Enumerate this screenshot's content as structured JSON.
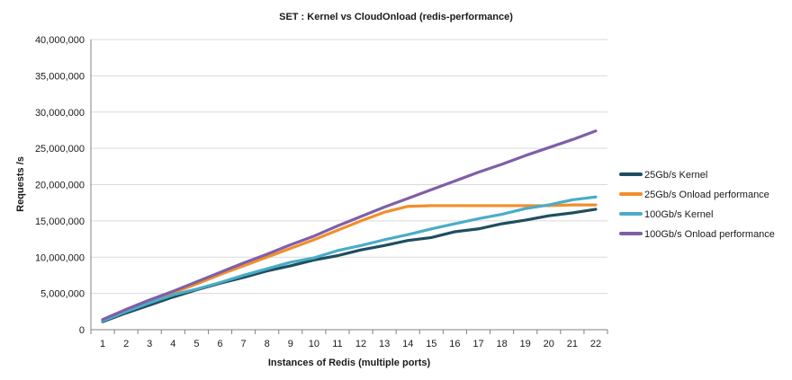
{
  "chart_data": {
    "type": "line",
    "title": "SET : Kernel vs CloudOnload (redis-performance)",
    "xlabel": "Instances of Redis (multiple ports)",
    "ylabel": "Requests /s",
    "x": [
      1,
      2,
      3,
      4,
      5,
      6,
      7,
      8,
      9,
      10,
      11,
      12,
      13,
      14,
      15,
      16,
      17,
      18,
      19,
      20,
      21,
      22
    ],
    "ylim": [
      0,
      40000000
    ],
    "y_ticks": [
      0,
      5000000,
      10000000,
      15000000,
      20000000,
      25000000,
      30000000,
      35000000,
      40000000
    ],
    "y_tick_labels": [
      "0",
      "5,000,000",
      "10,000,000",
      "15,000,000",
      "20,000,000",
      "25,000,000",
      "30,000,000",
      "35,000,000",
      "40,000,000"
    ],
    "grid": "horizontal",
    "legend_position": "right",
    "series": [
      {
        "name": "25Gb/s Kernel",
        "color": "#1f4e5f",
        "values": [
          1100000,
          2300000,
          3400000,
          4500000,
          5500000,
          6400000,
          7200000,
          8100000,
          8800000,
          9600000,
          10200000,
          11000000,
          11600000,
          12300000,
          12700000,
          13500000,
          13900000,
          14600000,
          15100000,
          15700000,
          16100000,
          16600000
        ]
      },
      {
        "name": "25Gb/s Onload performance",
        "color": "#f28e2b",
        "values": [
          1300000,
          2600000,
          3900000,
          5100000,
          6300000,
          7600000,
          8800000,
          10000000,
          11200000,
          12400000,
          13700000,
          15000000,
          16200000,
          17000000,
          17100000,
          17100000,
          17100000,
          17100000,
          17100000,
          17100000,
          17200000,
          17200000
        ]
      },
      {
        "name": "100Gb/s Kernel",
        "color": "#4bacc6",
        "values": [
          1200000,
          2500000,
          3700000,
          4800000,
          5600000,
          6500000,
          7500000,
          8400000,
          9300000,
          9900000,
          10900000,
          11600000,
          12400000,
          13100000,
          13900000,
          14600000,
          15300000,
          15900000,
          16700000,
          17200000,
          17900000,
          18300000
        ]
      },
      {
        "name": "100Gb/s Onload performance",
        "color": "#7f5fa8",
        "values": [
          1400000,
          2800000,
          4100000,
          5300000,
          6600000,
          7900000,
          9200000,
          10400000,
          11700000,
          12900000,
          14300000,
          15600000,
          16900000,
          18100000,
          19300000,
          20500000,
          21700000,
          22800000,
          24000000,
          25100000,
          26200000,
          27400000
        ]
      }
    ]
  }
}
